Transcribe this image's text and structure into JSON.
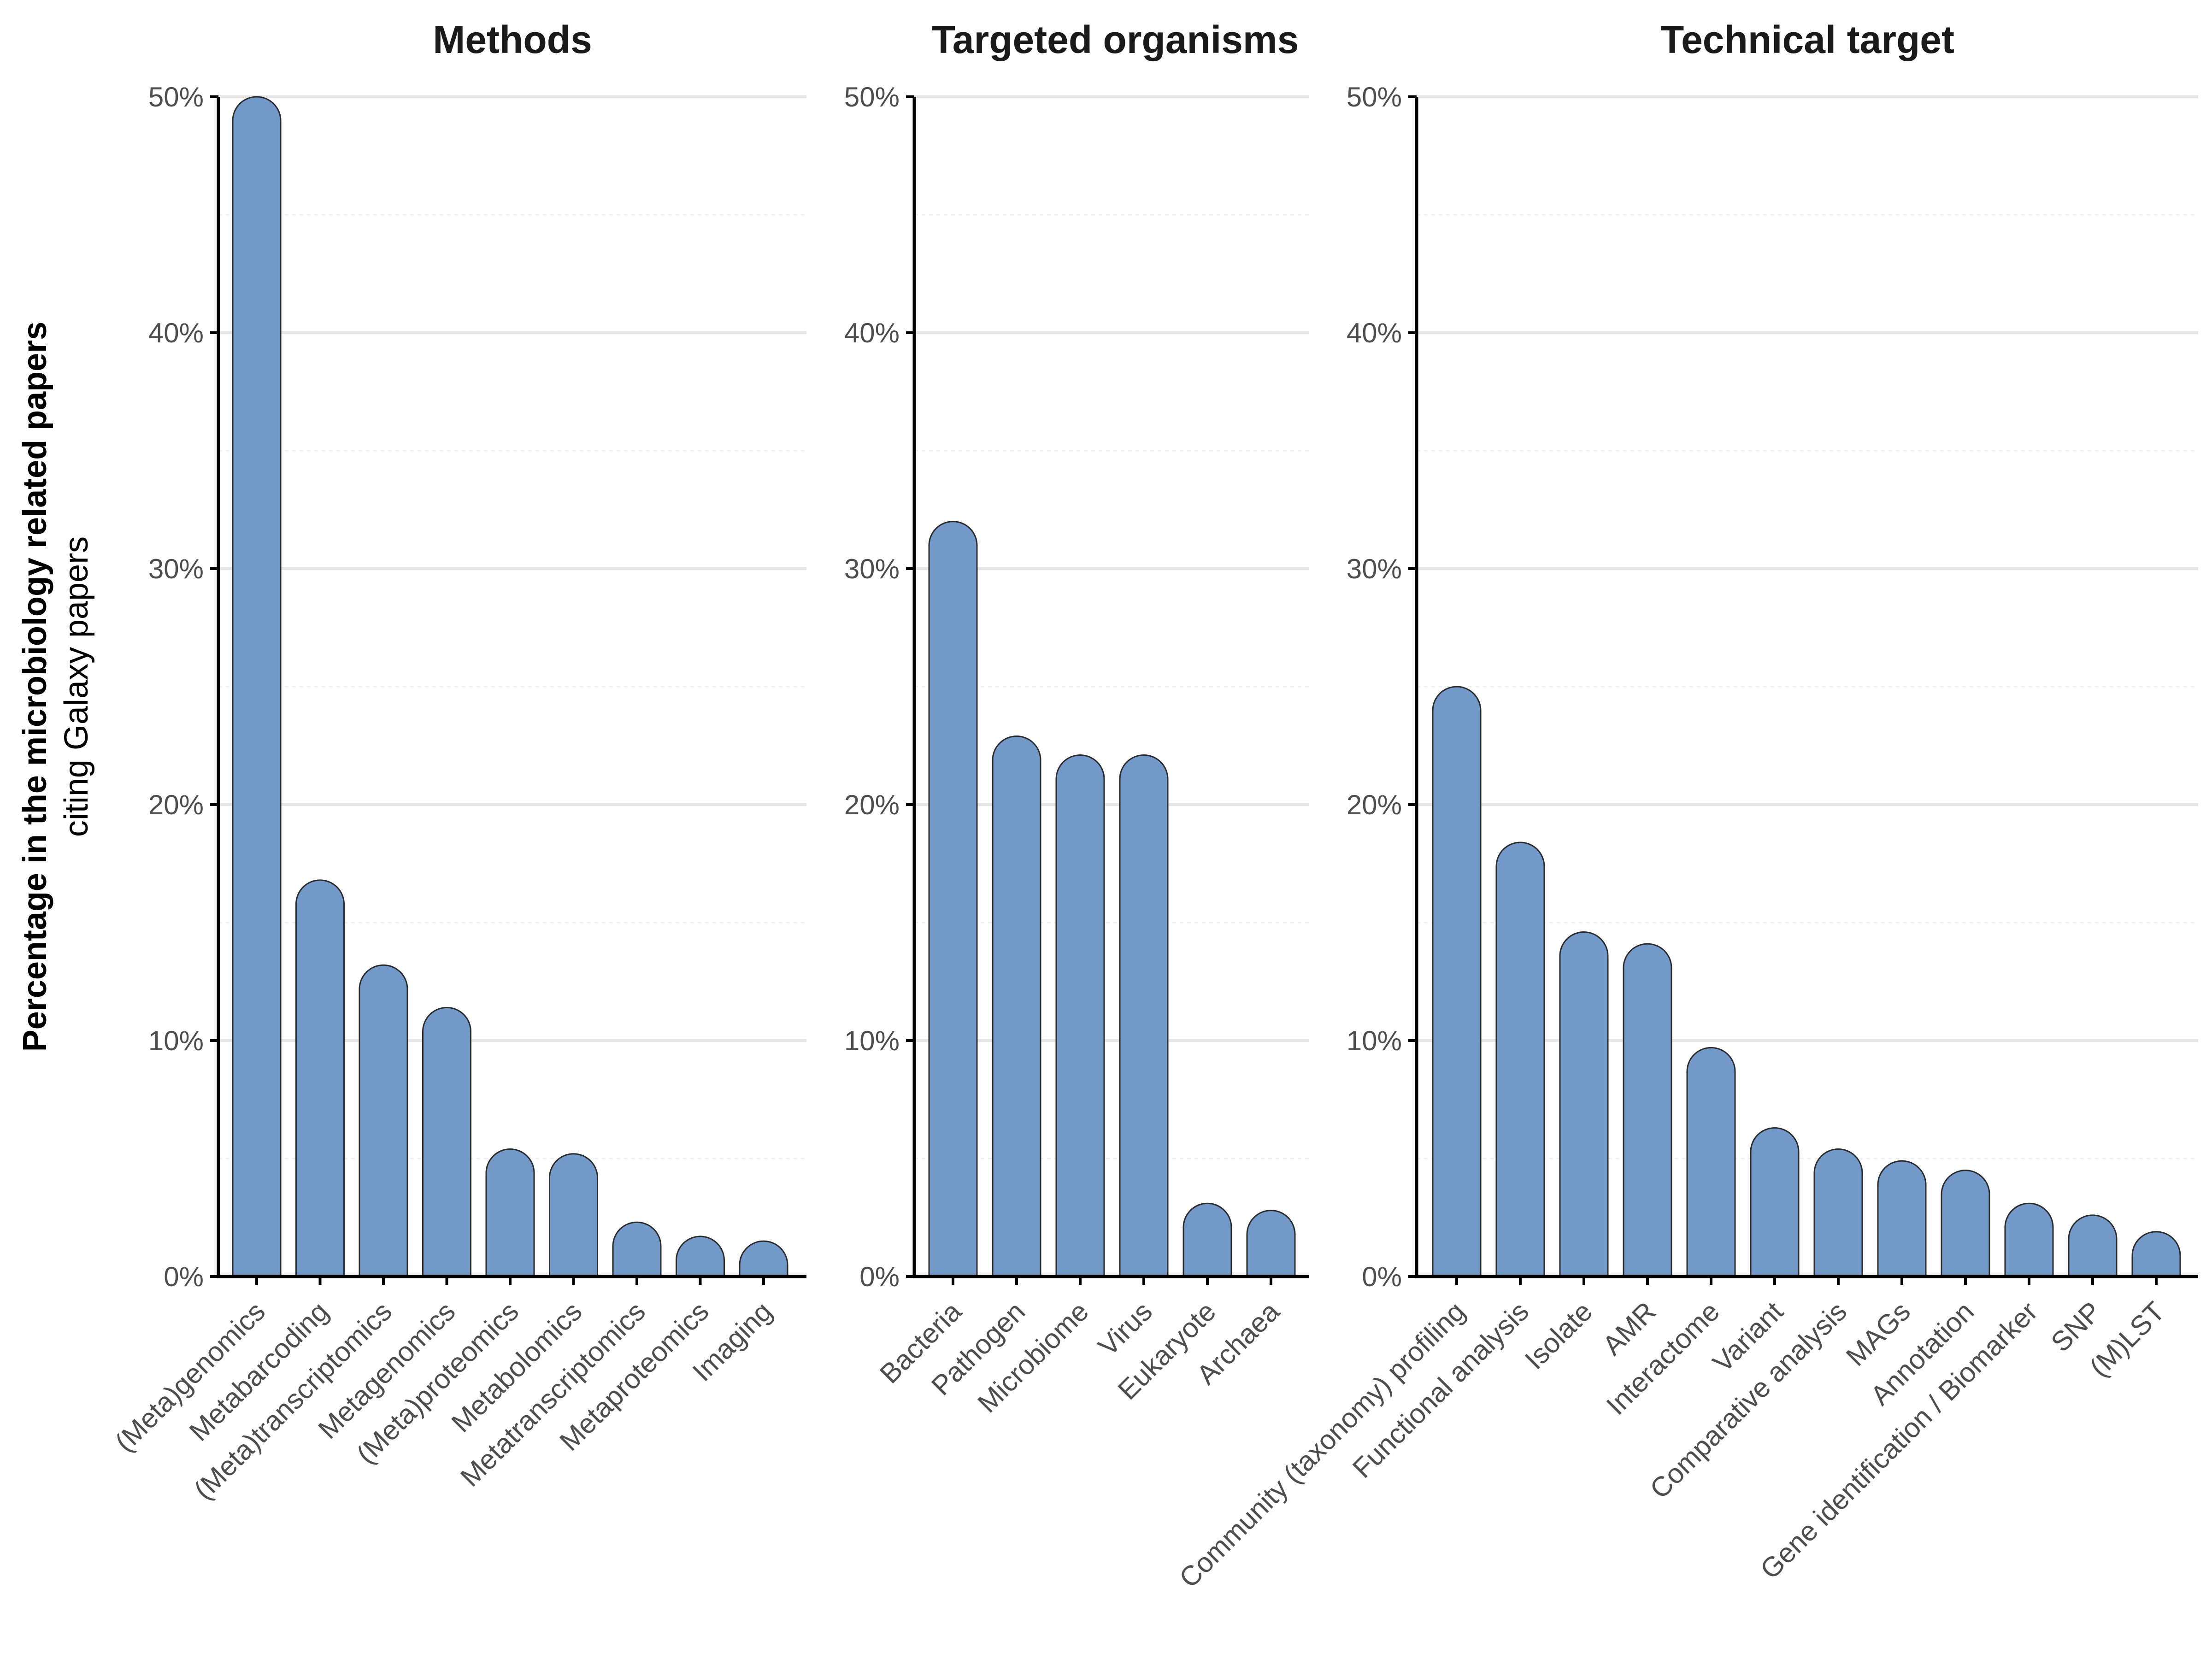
{
  "chart_data": {
    "type": "bar",
    "ylabel": "Percentage in the microbiology related papers",
    "ylabel_sub": "citing Galaxy papers",
    "ylim": [
      0,
      50
    ],
    "yticks": [
      "0%",
      "10%",
      "20%",
      "30%",
      "40%",
      "50%"
    ],
    "bar_color": "#7399c8",
    "grid": true,
    "panels": [
      {
        "title": "Methods",
        "categories": [
          "(Meta)genomics",
          "Metabarcoding",
          "(Meta)transcriptomics",
          "Metagenomics",
          "(Meta)proteomics",
          "Metabolomics",
          "Metatranscriptomics",
          "Metaproteomics",
          "Imaging"
        ],
        "values": [
          50,
          16.8,
          13.2,
          11.4,
          5.4,
          5.2,
          2.3,
          1.7,
          1.5
        ]
      },
      {
        "title": "Targeted organisms",
        "categories": [
          "Bacteria",
          "Pathogen",
          "Microbiome",
          "Virus",
          "Eukaryote",
          "Archaea"
        ],
        "values": [
          32,
          22.9,
          22.1,
          22.1,
          3.1,
          2.8
        ]
      },
      {
        "title": "Technical target",
        "categories": [
          "Community (taxonomy) profiling",
          "Functional analysis",
          "Isolate",
          "AMR",
          "Interactome",
          "Variant",
          "Comparative analysis",
          "MAGs",
          "Annotation",
          "Gene identification / Biomarker",
          "SNP",
          "(M)LST"
        ],
        "values": [
          25,
          18.4,
          14.6,
          14.1,
          9.7,
          6.3,
          5.4,
          4.9,
          4.5,
          3.1,
          2.6,
          1.9
        ]
      }
    ]
  }
}
